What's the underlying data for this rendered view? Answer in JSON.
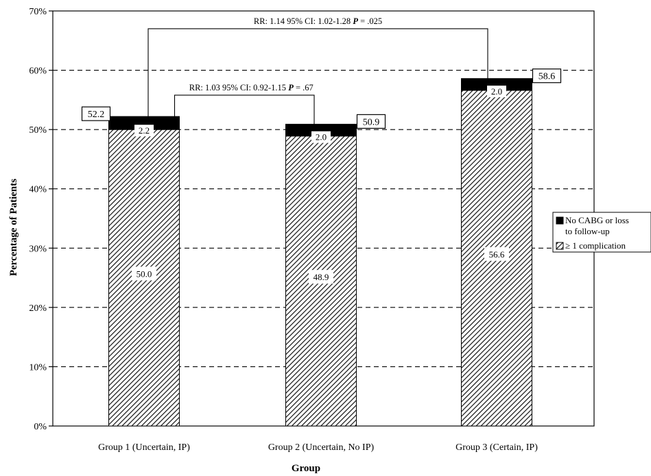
{
  "chart_data": {
    "type": "bar",
    "stacked": true,
    "title": "",
    "xlabel": "Group",
    "ylabel": "Percentage of Patients",
    "ylim": [
      0,
      70
    ],
    "yticks": [
      0,
      10,
      20,
      30,
      40,
      50,
      60,
      70
    ],
    "ytick_labels": [
      "0%",
      "10%",
      "20%",
      "30%",
      "40%",
      "50%",
      "60%",
      "70%"
    ],
    "grid": "horizontal-dashed",
    "legend_position": "right",
    "categories": [
      "Group 1 (Uncertain, IP)",
      "Group 2 (Uncertain, No IP)",
      "Group 3 (Certain, IP)"
    ],
    "series": [
      {
        "name": "≥ 1 complication",
        "values": [
          50.0,
          48.9,
          56.6
        ],
        "value_labels": [
          "50.0",
          "48.9",
          "56.6"
        ],
        "color": "#000000",
        "pattern": "hatch"
      },
      {
        "name": "No CABG or loss to follow-up",
        "values": [
          2.2,
          2.0,
          2.0
        ],
        "value_labels": [
          "2.2",
          "2.0",
          "2.0"
        ],
        "color": "#000000",
        "pattern": "solid"
      }
    ],
    "totals": [
      52.2,
      50.9,
      58.6
    ],
    "total_labels": [
      "52.2",
      "50.9",
      "58.6"
    ],
    "legend": [
      {
        "lines": [
          "No CABG or loss",
          "to follow-up"
        ],
        "pattern": "solid"
      },
      {
        "lines": [
          "≥ 1 complication"
        ],
        "pattern": "hatch"
      }
    ],
    "comparisons": [
      {
        "from": 0,
        "to": 1,
        "y": 55.8,
        "label": "RR: 1.03  95% CI:  0.92-1.15 P = .67",
        "parts": [
          "RR: 1.03  95% CI:  0.92-1.15 ",
          "P",
          " = .67"
        ]
      },
      {
        "from": 0,
        "to": 2,
        "y": 67.0,
        "label": "RR: 1.14  95% CI:  1.02-1.28 P = .025",
        "parts": [
          "RR: 1.14  95% CI:  1.02-1.28 ",
          "P",
          " = .025"
        ]
      }
    ]
  }
}
